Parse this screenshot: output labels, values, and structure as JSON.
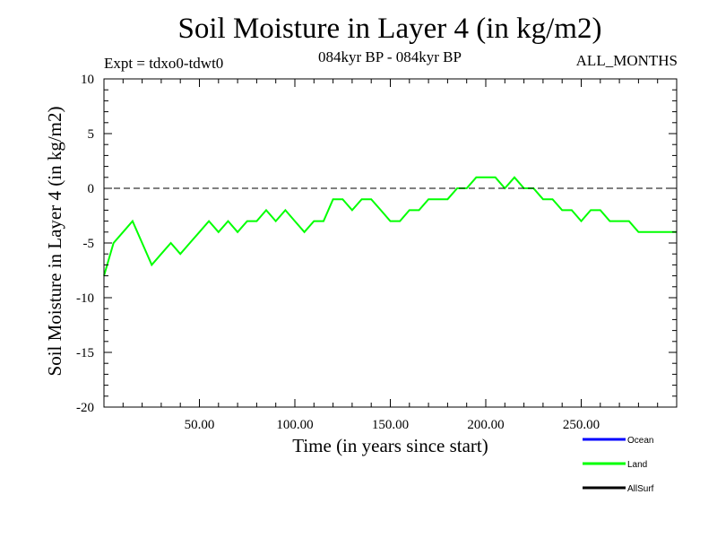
{
  "chart_data": {
    "type": "line",
    "title": "Soil Moisture in Layer 4 (in kg/m2)",
    "subtitle_left": "Expt = tdxo0-tdwt0",
    "subtitle_center": "084kyr BP - 084kyr BP",
    "subtitle_right": "ALL_MONTHS",
    "xlabel": "Time (in years since start)",
    "ylabel": "Soil Moisture in Layer 4 (in kg/m2)",
    "xlim": [
      0,
      300
    ],
    "ylim": [
      -20,
      10
    ],
    "x_ticks": [
      {
        "value": 50,
        "label": "50.00"
      },
      {
        "value": 100,
        "label": "100.00"
      },
      {
        "value": 150,
        "label": "150.00"
      },
      {
        "value": 200,
        "label": "200.00"
      },
      {
        "value": 250,
        "label": "250.00"
      }
    ],
    "y_ticks": [
      {
        "value": 10,
        "label": "10"
      },
      {
        "value": 5,
        "label": "5"
      },
      {
        "value": 0,
        "label": "0"
      },
      {
        "value": -5,
        "label": "-5"
      },
      {
        "value": -10,
        "label": "-10"
      },
      {
        "value": -15,
        "label": "-15"
      },
      {
        "value": -20,
        "label": "-20"
      }
    ],
    "reference_line": {
      "y": 0,
      "style": "dashed"
    },
    "legend": [
      {
        "name": "Ocean",
        "color": "#0000ff"
      },
      {
        "name": "Land",
        "color": "#00ff00"
      },
      {
        "name": "AllSurf",
        "color": "#000000"
      }
    ],
    "series": [
      {
        "name": "Land",
        "color": "#00ff00",
        "x": [
          0,
          5,
          10,
          15,
          20,
          25,
          30,
          35,
          40,
          45,
          50,
          55,
          60,
          65,
          70,
          75,
          80,
          85,
          90,
          95,
          100,
          105,
          110,
          115,
          120,
          125,
          130,
          135,
          140,
          145,
          150,
          155,
          160,
          165,
          170,
          175,
          180,
          185,
          190,
          195,
          200,
          205,
          210,
          215,
          220,
          225,
          230,
          235,
          240,
          245,
          250,
          255,
          260,
          265,
          270,
          275,
          280,
          285,
          290,
          295,
          300
        ],
        "y": [
          -8,
          -5,
          -4,
          -3,
          -5,
          -7,
          -6,
          -5,
          -6,
          -5,
          -4,
          -3,
          -4,
          -3,
          -4,
          -3,
          -3,
          -2,
          -3,
          -2,
          -3,
          -4,
          -3,
          -3,
          -1,
          -1,
          -2,
          -1,
          -1,
          -2,
          -3,
          -3,
          -2,
          -2,
          -1,
          -1,
          -1,
          0,
          0,
          1,
          1,
          1,
          0,
          1,
          0,
          0,
          -1,
          -1,
          -2,
          -2,
          -3,
          -2,
          -2,
          -3,
          -3,
          -3,
          -4,
          -4,
          -4,
          -4,
          -4
        ]
      },
      {
        "name": "Ocean",
        "color": "#0000ff",
        "x": [],
        "y": []
      },
      {
        "name": "AllSurf",
        "color": "#000000",
        "x": [],
        "y": []
      }
    ]
  }
}
